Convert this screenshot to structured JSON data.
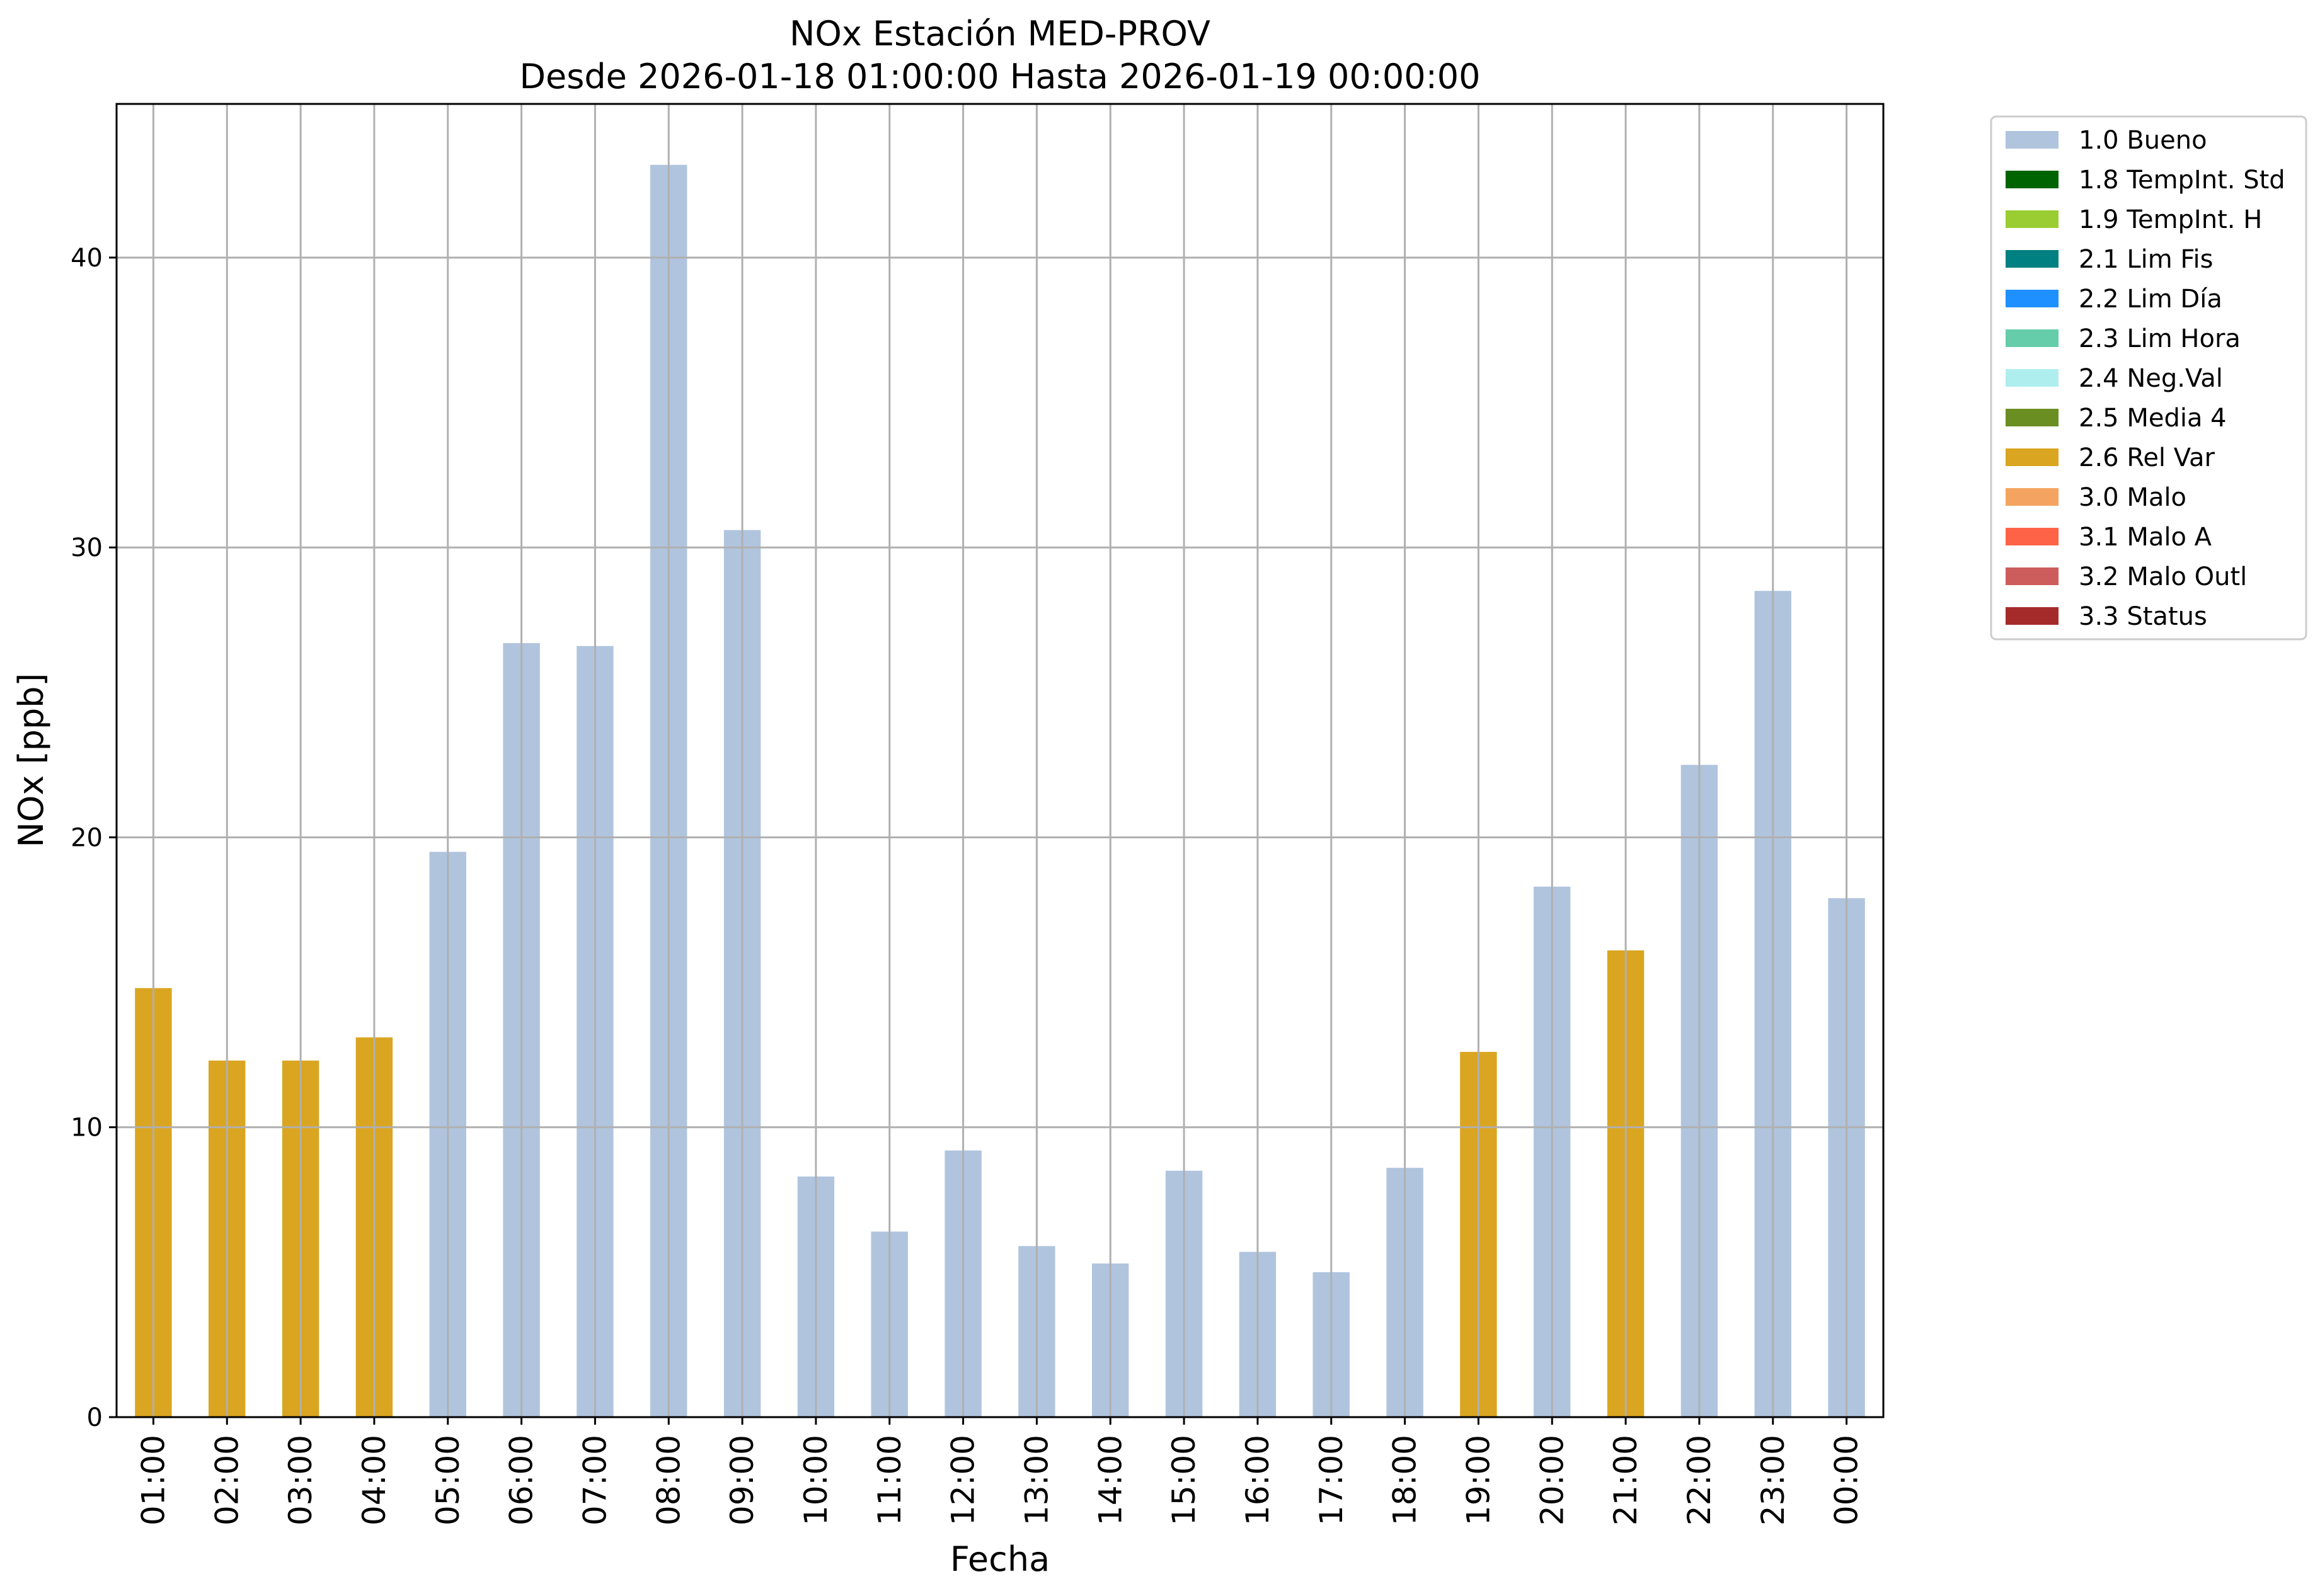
{
  "chart_data": {
    "type": "bar",
    "title": "NOx Estación MED-PROV",
    "subtitle": "Desde 2026-01-18 01:00:00 Hasta 2026-01-19 00:00:00",
    "xlabel": "Fecha",
    "ylabel": "NOx [ppb]",
    "ylim": [
      0,
      45.3
    ],
    "yticks": [
      "0",
      "10",
      "20",
      "30",
      "40"
    ],
    "grid": true,
    "legend_position": "outside-top-right",
    "categories": [
      "01:00",
      "02:00",
      "03:00",
      "04:00",
      "05:00",
      "06:00",
      "07:00",
      "08:00",
      "09:00",
      "10:00",
      "11:00",
      "12:00",
      "13:00",
      "14:00",
      "15:00",
      "16:00",
      "17:00",
      "18:00",
      "19:00",
      "20:00",
      "21:00",
      "22:00",
      "23:00",
      "00:00"
    ],
    "values": [
      14.8,
      12.3,
      12.3,
      13.1,
      19.5,
      26.7,
      26.6,
      43.2,
      30.6,
      8.3,
      6.4,
      9.2,
      5.9,
      5.3,
      8.5,
      5.7,
      5.0,
      8.6,
      12.6,
      18.3,
      16.1,
      22.5,
      28.5,
      17.9
    ],
    "flags": [
      "2.6 Rel Var",
      "2.6 Rel Var",
      "2.6 Rel Var",
      "2.6 Rel Var",
      "1.0 Bueno",
      "1.0 Bueno",
      "1.0 Bueno",
      "1.0 Bueno",
      "1.0 Bueno",
      "1.0 Bueno",
      "1.0 Bueno",
      "1.0 Bueno",
      "1.0 Bueno",
      "1.0 Bueno",
      "1.0 Bueno",
      "1.0 Bueno",
      "1.0 Bueno",
      "1.0 Bueno",
      "2.6 Rel Var",
      "1.0 Bueno",
      "2.6 Rel Var",
      "1.0 Bueno",
      "1.0 Bueno",
      "1.0 Bueno"
    ],
    "legend": [
      {
        "label": "1.0 Bueno",
        "color": "#b0c4de"
      },
      {
        "label": "1.8 TempInt. Std",
        "color": "#006400"
      },
      {
        "label": "1.9 TempInt. H",
        "color": "#9acd32"
      },
      {
        "label": "2.1 Lim Fis",
        "color": "#008080"
      },
      {
        "label": "2.2 Lim Día",
        "color": "#1e90ff"
      },
      {
        "label": "2.3 Lim Hora",
        "color": "#66cdaa"
      },
      {
        "label": "2.4 Neg.Val",
        "color": "#afeeee"
      },
      {
        "label": "2.5 Media 4",
        "color": "#6b8e23"
      },
      {
        "label": "2.6 Rel Var",
        "color": "#daa520"
      },
      {
        "label": "3.0 Malo",
        "color": "#f4a460"
      },
      {
        "label": "3.1 Malo A",
        "color": "#ff6347"
      },
      {
        "label": "3.2 Malo Outl",
        "color": "#cd5c5c"
      },
      {
        "label": "3.3 Status",
        "color": "#a52a2a"
      }
    ]
  }
}
